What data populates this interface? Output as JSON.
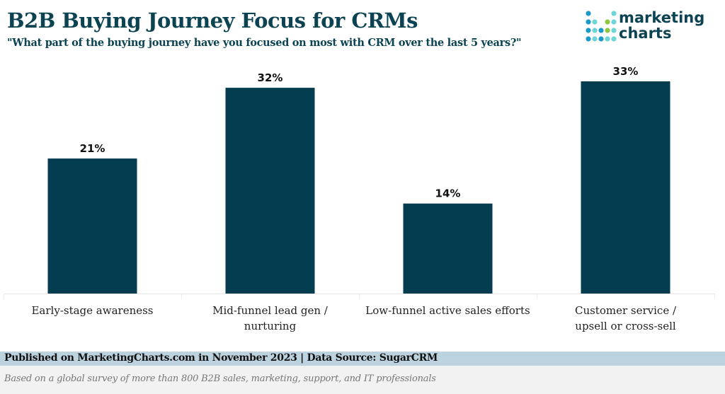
{
  "chart_data": {
    "type": "bar",
    "title": "B2B Buying Journey Focus for CRMs",
    "subtitle": "\"What part of the buying journey have you focused on most with CRM over the last 5 years?\"",
    "categories": [
      [
        "Early-stage awareness"
      ],
      [
        "Mid-funnel lead gen /",
        "nurturing"
      ],
      [
        "Low-funnel active sales efforts"
      ],
      [
        "Customer service /",
        "upsell or cross-sell"
      ]
    ],
    "values": [
      21,
      32,
      14,
      33
    ],
    "data_labels": [
      "21%",
      "32%",
      "14%",
      "33%"
    ],
    "unit": "%",
    "ylim": [
      0,
      33
    ],
    "grid": false,
    "bar_color": "#053d50"
  },
  "logo": {
    "line1": "marketing",
    "line2": "charts"
  },
  "footer": {
    "published": "Published on MarketingCharts.com in November 2023 | Data Source: SugarCRM",
    "note": "Based on a global survey of more than 800 B2B sales, marketing, support, and IT professionals"
  }
}
